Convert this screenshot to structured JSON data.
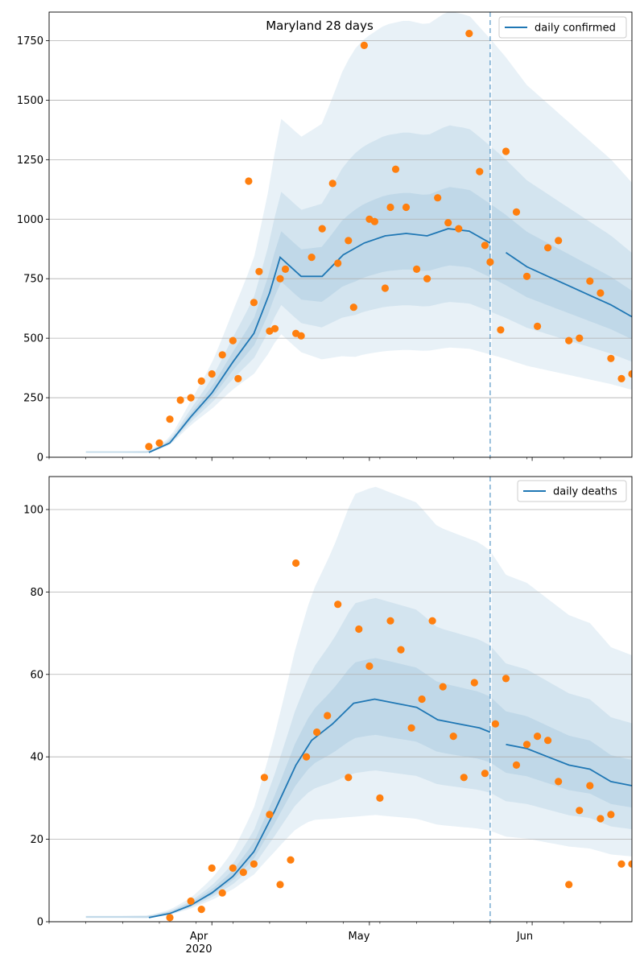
{
  "chart_data": [
    {
      "type": "line",
      "title": "Maryland 28 days",
      "xlabel": "",
      "ylabel": "",
      "ylim": [
        0,
        1870
      ],
      "yticks": [
        0,
        250,
        500,
        750,
        1000,
        1250,
        1500,
        1750
      ],
      "grid": "horizontal",
      "legend": {
        "position": "top-right",
        "entries": [
          "daily confirmed"
        ]
      },
      "forecast_start": "2020-05-24",
      "series": [
        {
          "name": "daily confirmed",
          "kind": "mean_line",
          "x": [
            "2020-03-20",
            "2020-03-24",
            "2020-03-28",
            "2020-04-01",
            "2020-04-05",
            "2020-04-09",
            "2020-04-12",
            "2020-04-14",
            "2020-04-18",
            "2020-04-22",
            "2020-04-26",
            "2020-04-30",
            "2020-05-04",
            "2020-05-08",
            "2020-05-12",
            "2020-05-16",
            "2020-05-20",
            "2020-05-24",
            "2020-05-27",
            "2020-05-31",
            "2020-06-04",
            "2020-06-08",
            "2020-06-12",
            "2020-06-16",
            "2020-06-20"
          ],
          "y": [
            20,
            60,
            170,
            270,
            400,
            520,
            690,
            840,
            760,
            760,
            850,
            900,
            930,
            940,
            930,
            960,
            950,
            900,
            860,
            800,
            760,
            720,
            680,
            640,
            590
          ]
        },
        {
          "name": "daily confirmed observed",
          "kind": "points",
          "x": [
            "2020-03-20",
            "2020-03-22",
            "2020-03-24",
            "2020-03-26",
            "2020-03-28",
            "2020-03-30",
            "2020-04-01",
            "2020-04-03",
            "2020-04-05",
            "2020-04-06",
            "2020-04-08",
            "2020-04-09",
            "2020-04-10",
            "2020-04-12",
            "2020-04-13",
            "2020-04-14",
            "2020-04-15",
            "2020-04-17",
            "2020-04-18",
            "2020-04-20",
            "2020-04-22",
            "2020-04-24",
            "2020-04-25",
            "2020-04-27",
            "2020-04-28",
            "2020-04-30",
            "2020-05-01",
            "2020-05-02",
            "2020-05-04",
            "2020-05-05",
            "2020-05-06",
            "2020-05-08",
            "2020-05-10",
            "2020-05-12",
            "2020-05-14",
            "2020-05-16",
            "2020-05-18",
            "2020-05-20",
            "2020-05-22",
            "2020-05-23",
            "2020-05-24",
            "2020-05-26",
            "2020-05-27",
            "2020-05-29",
            "2020-05-31",
            "2020-06-02",
            "2020-06-04",
            "2020-06-06",
            "2020-06-08",
            "2020-06-10",
            "2020-06-12",
            "2020-06-14",
            "2020-06-16",
            "2020-06-18",
            "2020-06-20"
          ],
          "y": [
            45,
            60,
            160,
            240,
            250,
            320,
            350,
            430,
            490,
            330,
            1160,
            650,
            780,
            530,
            540,
            750,
            790,
            520,
            510,
            840,
            960,
            1150,
            815,
            910,
            630,
            1730,
            1000,
            990,
            710,
            1050,
            1210,
            1050,
            790,
            750,
            1090,
            985,
            960,
            1780,
            1200,
            890,
            820,
            535,
            1285,
            1030,
            760,
            550,
            880,
            910,
            490,
            500,
            740,
            690,
            415,
            330,
            350
          ]
        }
      ]
    },
    {
      "type": "line",
      "title": "",
      "xlabel": "",
      "ylabel": "",
      "ylim": [
        0,
        108
      ],
      "yticks": [
        0,
        20,
        40,
        60,
        80,
        100
      ],
      "grid": "horizontal",
      "legend": {
        "position": "top-right",
        "entries": [
          "daily deaths"
        ]
      },
      "forecast_start": "2020-05-24",
      "xticks": [
        "2020-04-01",
        "2020-05-01",
        "2020-06-01"
      ],
      "xtick_labels": [
        "Apr",
        "May",
        "Jun"
      ],
      "x_offset_label": "2020",
      "series": [
        {
          "name": "daily deaths",
          "kind": "mean_line",
          "x": [
            "2020-03-20",
            "2020-03-24",
            "2020-03-28",
            "2020-04-01",
            "2020-04-05",
            "2020-04-09",
            "2020-04-13",
            "2020-04-17",
            "2020-04-20",
            "2020-04-24",
            "2020-04-28",
            "2020-05-02",
            "2020-05-06",
            "2020-05-10",
            "2020-05-14",
            "2020-05-18",
            "2020-05-22",
            "2020-05-24",
            "2020-05-27",
            "2020-05-31",
            "2020-06-04",
            "2020-06-08",
            "2020-06-12",
            "2020-06-16",
            "2020-06-20"
          ],
          "y": [
            1,
            2,
            4,
            7,
            11,
            17,
            27,
            38,
            44,
            48,
            53,
            54,
            53,
            52,
            49,
            48,
            47,
            46,
            43,
            42,
            40,
            38,
            37,
            34,
            33
          ]
        },
        {
          "name": "daily deaths observed",
          "kind": "points",
          "x": [
            "2020-03-24",
            "2020-03-28",
            "2020-03-30",
            "2020-04-01",
            "2020-04-03",
            "2020-04-05",
            "2020-04-07",
            "2020-04-09",
            "2020-04-11",
            "2020-04-12",
            "2020-04-14",
            "2020-04-16",
            "2020-04-17",
            "2020-04-19",
            "2020-04-21",
            "2020-04-23",
            "2020-04-25",
            "2020-04-27",
            "2020-04-29",
            "2020-05-01",
            "2020-05-03",
            "2020-05-05",
            "2020-05-07",
            "2020-05-09",
            "2020-05-11",
            "2020-05-13",
            "2020-05-15",
            "2020-05-17",
            "2020-05-19",
            "2020-05-21",
            "2020-05-23",
            "2020-05-25",
            "2020-05-27",
            "2020-05-29",
            "2020-05-31",
            "2020-06-02",
            "2020-06-04",
            "2020-06-06",
            "2020-06-08",
            "2020-06-10",
            "2020-06-12",
            "2020-06-14",
            "2020-06-16",
            "2020-06-18",
            "2020-06-20"
          ],
          "y": [
            1,
            5,
            3,
            13,
            7,
            13,
            12,
            14,
            35,
            26,
            9,
            15,
            87,
            40,
            46,
            50,
            77,
            35,
            71,
            62,
            30,
            73,
            66,
            47,
            54,
            73,
            57,
            45,
            35,
            58,
            36,
            48,
            59,
            38,
            43,
            45,
            44,
            34,
            9,
            27,
            33,
            25,
            26,
            14,
            14
          ]
        }
      ]
    }
  ]
}
